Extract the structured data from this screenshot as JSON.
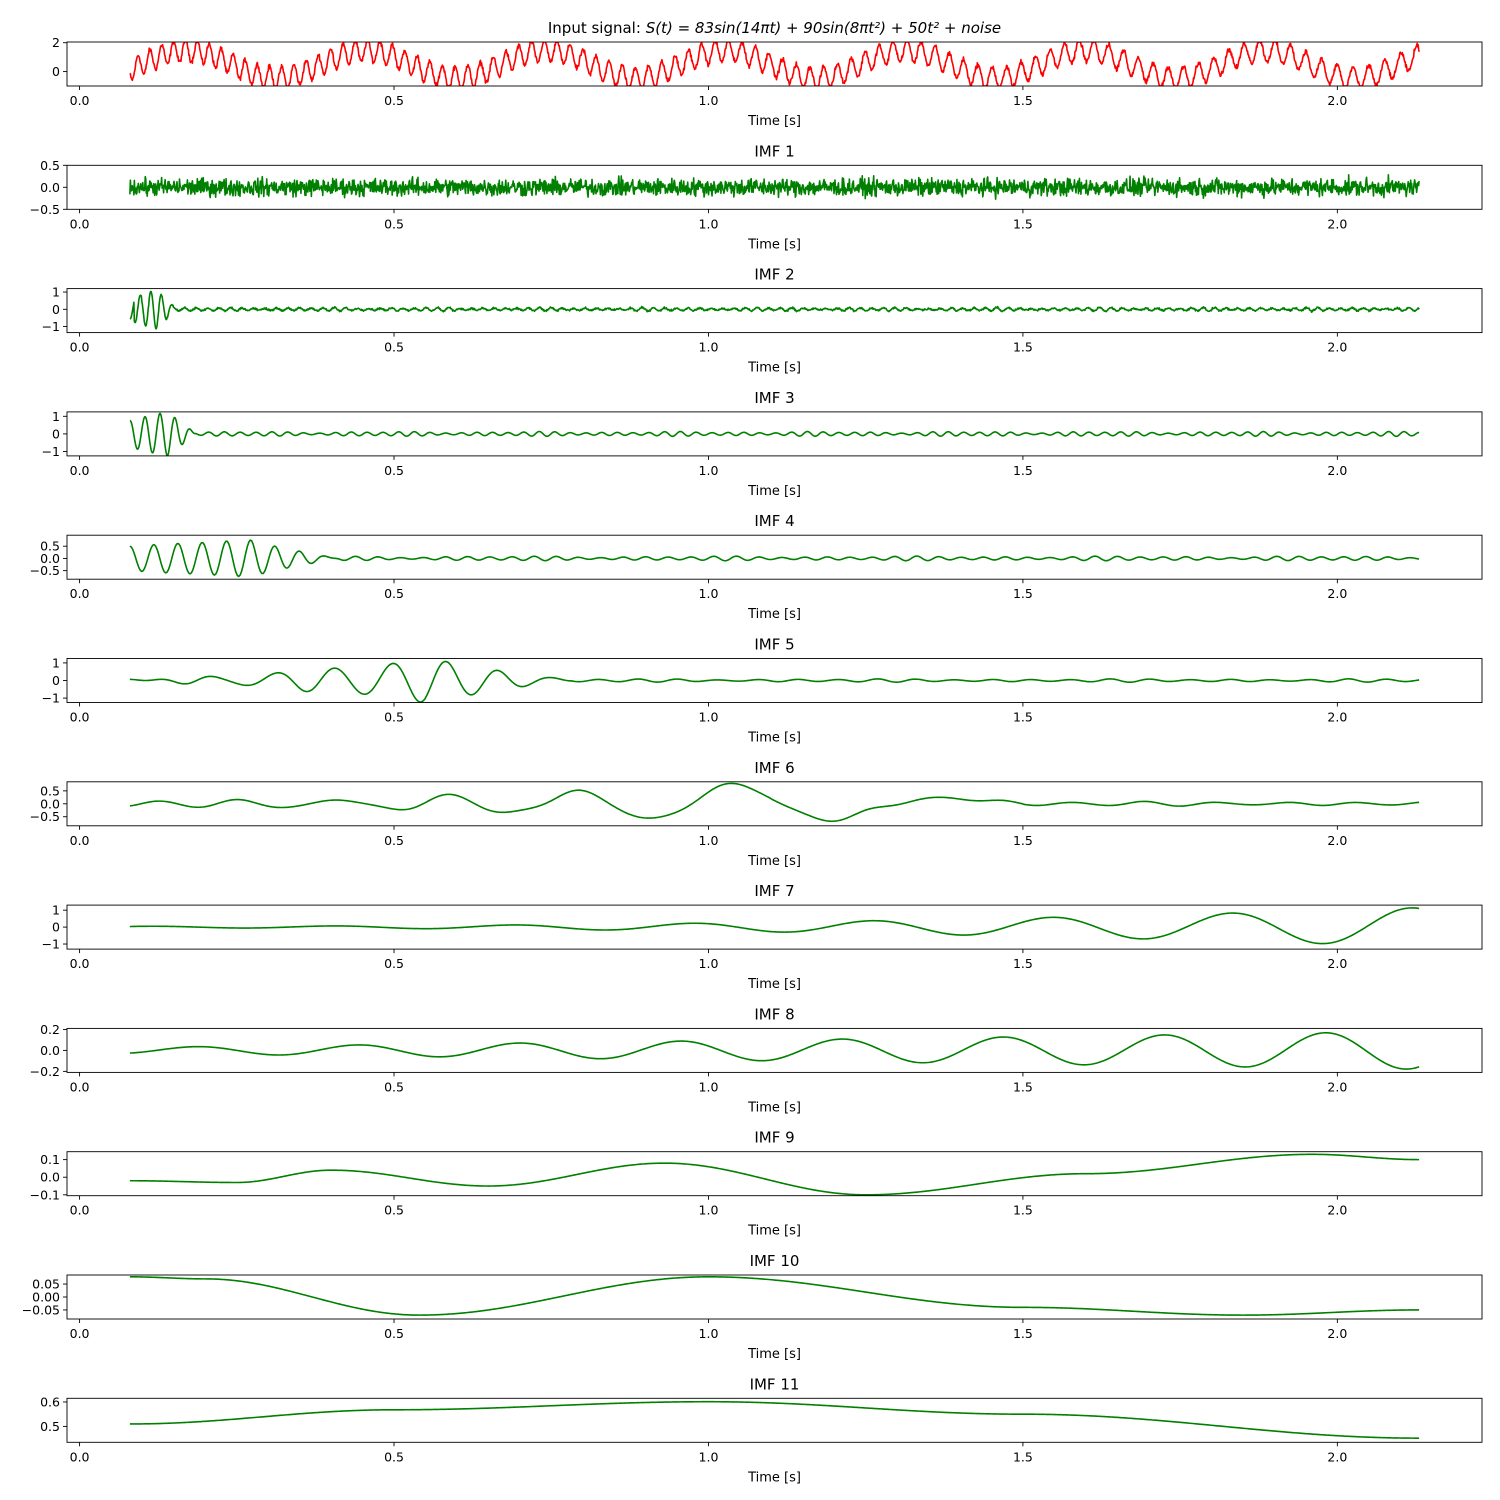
{
  "chart_data": {
    "type": "line",
    "layout": "vertical-stack",
    "grid": false,
    "xlim": [
      -0.02,
      2.23
    ],
    "xticks": [
      0.0,
      0.5,
      1.0,
      1.5,
      2.0
    ],
    "xtick_labels": [
      "0.0",
      "0.5",
      "1.0",
      "1.5",
      "2.0"
    ],
    "xlabel": "Time [s]",
    "t_range": [
      0.08,
      2.13
    ],
    "colors": {
      "input": "#ff0000",
      "imf": "#008000"
    },
    "panels": [
      {
        "title_prefix": "Input signal: ",
        "title_math": "S(t) = 83sin(14πt) + 90sin(8πt²) + 50t² + noise",
        "color": "#ff0000",
        "ylim": [
          -1.0,
          2.05
        ],
        "yticks": [
          0,
          2
        ],
        "ytick_labels": [
          "0",
          "2"
        ],
        "components": [
          {
            "kind": "sin_quadratic",
            "amp": 0.75,
            "b": 54,
            "c": 3.5,
            "phase": 1.6
          },
          {
            "kind": "sin_linear",
            "amp": 0.95,
            "freq": 3.5,
            "phase": 4.1
          },
          {
            "kind": "noise",
            "amp": 0.14
          },
          {
            "kind": "offset",
            "value": 0.5
          }
        ]
      },
      {
        "title": "IMF 1",
        "color": "#008000",
        "ylim": [
          -0.5,
          0.5
        ],
        "yticks": [
          -0.5,
          0.0,
          0.5
        ],
        "ytick_labels": [
          "−0.5",
          "0.0",
          "0.5"
        ],
        "components": [
          {
            "kind": "noise",
            "amp": 0.17
          }
        ]
      },
      {
        "title": "IMF 2",
        "color": "#008000",
        "ylim": [
          -1.35,
          1.2
        ],
        "yticks": [
          -1,
          0,
          1
        ],
        "ytick_labels": [
          "−1",
          "0",
          "1"
        ],
        "components": [
          {
            "kind": "burst",
            "t0": 0.08,
            "t1": 0.15,
            "amp_start": -1.2,
            "amp_peak": 1.1,
            "freq": 60
          },
          {
            "kind": "noise",
            "amp": 0.045
          },
          {
            "kind": "packets",
            "amp": 0.08,
            "freq": 55,
            "env": 9
          }
        ]
      },
      {
        "title": "IMF 3",
        "color": "#008000",
        "ylim": [
          -1.25,
          1.25
        ],
        "yticks": [
          -1,
          0,
          1
        ],
        "ytick_labels": [
          "−1",
          "0",
          "1"
        ],
        "components": [
          {
            "kind": "burst",
            "t0": 0.08,
            "t1": 0.18,
            "amp_start": 0.7,
            "amp_peak": 1.2,
            "freq": 42
          },
          {
            "kind": "packets",
            "amp": 0.1,
            "freq": 40,
            "env": 7
          }
        ]
      },
      {
        "title": "IMF 4",
        "color": "#008000",
        "ylim": [
          -0.85,
          0.95
        ],
        "yticks": [
          -0.5,
          0.0,
          0.5
        ],
        "ytick_labels": [
          "−0.5",
          "0.0",
          "0.5"
        ],
        "components": [
          {
            "kind": "burst",
            "t0": 0.08,
            "t1": 0.4,
            "amp_start": 0.25,
            "amp_peak": 0.8,
            "freq": 26
          },
          {
            "kind": "packets",
            "amp": 0.07,
            "freq": 28,
            "env": 5
          }
        ]
      },
      {
        "title": "IMF 5",
        "color": "#008000",
        "ylim": [
          -1.25,
          1.25
        ],
        "yticks": [
          -1,
          0,
          1
        ],
        "ytick_labels": [
          "−1",
          "0",
          "1"
        ],
        "components": [
          {
            "kind": "chirp_env",
            "t0": 0.08,
            "t1": 0.78,
            "peak_t": 0.55,
            "amp_peak": 1.15,
            "freq_start": 9,
            "freq_end": 11
          },
          {
            "kind": "packets",
            "amp": 0.07,
            "freq": 16,
            "env": 4
          }
        ]
      },
      {
        "title": "IMF 6",
        "color": "#008000",
        "ylim": [
          -0.85,
          0.85
        ],
        "yticks": [
          -0.5,
          0.0,
          0.5
        ],
        "ytick_labels": [
          "−0.5",
          "0.0",
          "0.5"
        ],
        "components": [
          {
            "kind": "chirp_env",
            "t0": 0.08,
            "t1": 1.5,
            "peak_t": 1.1,
            "amp_peak": 0.75,
            "freq_start": 7.5,
            "freq_end": 4.5
          },
          {
            "kind": "packets",
            "amp": 0.07,
            "freq": 9,
            "env": 3
          }
        ]
      },
      {
        "title": "IMF 7",
        "color": "#008000",
        "ylim": [
          -1.3,
          1.3
        ],
        "yticks": [
          -1,
          0,
          1
        ],
        "ytick_labels": [
          "−1",
          "0",
          "1"
        ],
        "components": [
          {
            "kind": "growing_sine",
            "amp_start": 0.05,
            "amp_end": 1.15,
            "freq": 3.5,
            "phase": -1.0,
            "power": 2.2
          }
        ]
      },
      {
        "title": "IMF 8",
        "color": "#008000",
        "ylim": [
          -0.21,
          0.21
        ],
        "yticks": [
          -0.2,
          0.0,
          0.2
        ],
        "ytick_labels": [
          "−0.2",
          "0.0",
          "0.2"
        ],
        "components": [
          {
            "kind": "growing_sine",
            "amp_start": 0.03,
            "amp_end": 0.18,
            "freq": 3.9,
            "phase": 3.3,
            "power": 1.1
          }
        ]
      },
      {
        "title": "IMF 9",
        "color": "#008000",
        "ylim": [
          -0.105,
          0.145
        ],
        "yticks": [
          -0.1,
          0.0,
          0.1
        ],
        "ytick_labels": [
          "−0.1",
          "0.0",
          "0.1"
        ],
        "components": [
          {
            "kind": "slow_wave",
            "points": [
              [
                0.08,
                -0.02
              ],
              [
                0.25,
                -0.03
              ],
              [
                0.4,
                0.04
              ],
              [
                0.65,
                -0.05
              ],
              [
                0.93,
                0.08
              ],
              [
                1.25,
                -0.1
              ],
              [
                1.6,
                0.02
              ],
              [
                1.96,
                0.13
              ],
              [
                2.13,
                0.1
              ]
            ]
          }
        ]
      },
      {
        "title": "IMF 10",
        "color": "#008000",
        "ylim": [
          -0.085,
          0.085
        ],
        "yticks": [
          -0.05,
          0.0,
          0.05
        ],
        "ytick_labels": [
          "−0.05",
          "0.00",
          "0.05"
        ],
        "components": [
          {
            "kind": "slow_wave",
            "points": [
              [
                0.08,
                0.078
              ],
              [
                0.2,
                0.07
              ],
              [
                0.54,
                -0.07
              ],
              [
                1.0,
                0.078
              ],
              [
                1.5,
                -0.04
              ],
              [
                1.85,
                -0.07
              ],
              [
                2.13,
                -0.05
              ]
            ]
          }
        ]
      },
      {
        "title": "IMF 11",
        "color": "#008000",
        "ylim": [
          0.435,
          0.615
        ],
        "yticks": [
          0.5,
          0.6
        ],
        "ytick_labels": [
          "0.5",
          "0.6"
        ],
        "components": [
          {
            "kind": "slow_wave",
            "points": [
              [
                0.08,
                0.51
              ],
              [
                0.5,
                0.568
              ],
              [
                1.0,
                0.601
              ],
              [
                1.5,
                0.55
              ],
              [
                2.13,
                0.452
              ]
            ]
          }
        ]
      }
    ]
  }
}
